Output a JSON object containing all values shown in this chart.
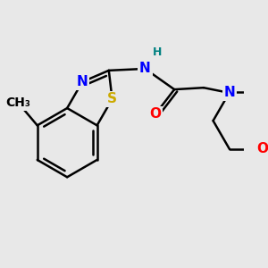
{
  "background_color": "#e8e8e8",
  "bond_color": "#000000",
  "bond_width": 1.8,
  "atom_colors": {
    "N": "#0000ff",
    "O": "#ff0000",
    "S": "#ccaa00",
    "H": "#008080"
  },
  "font_size": 11,
  "fig_size": [
    3.0,
    3.0
  ],
  "dpi": 100
}
